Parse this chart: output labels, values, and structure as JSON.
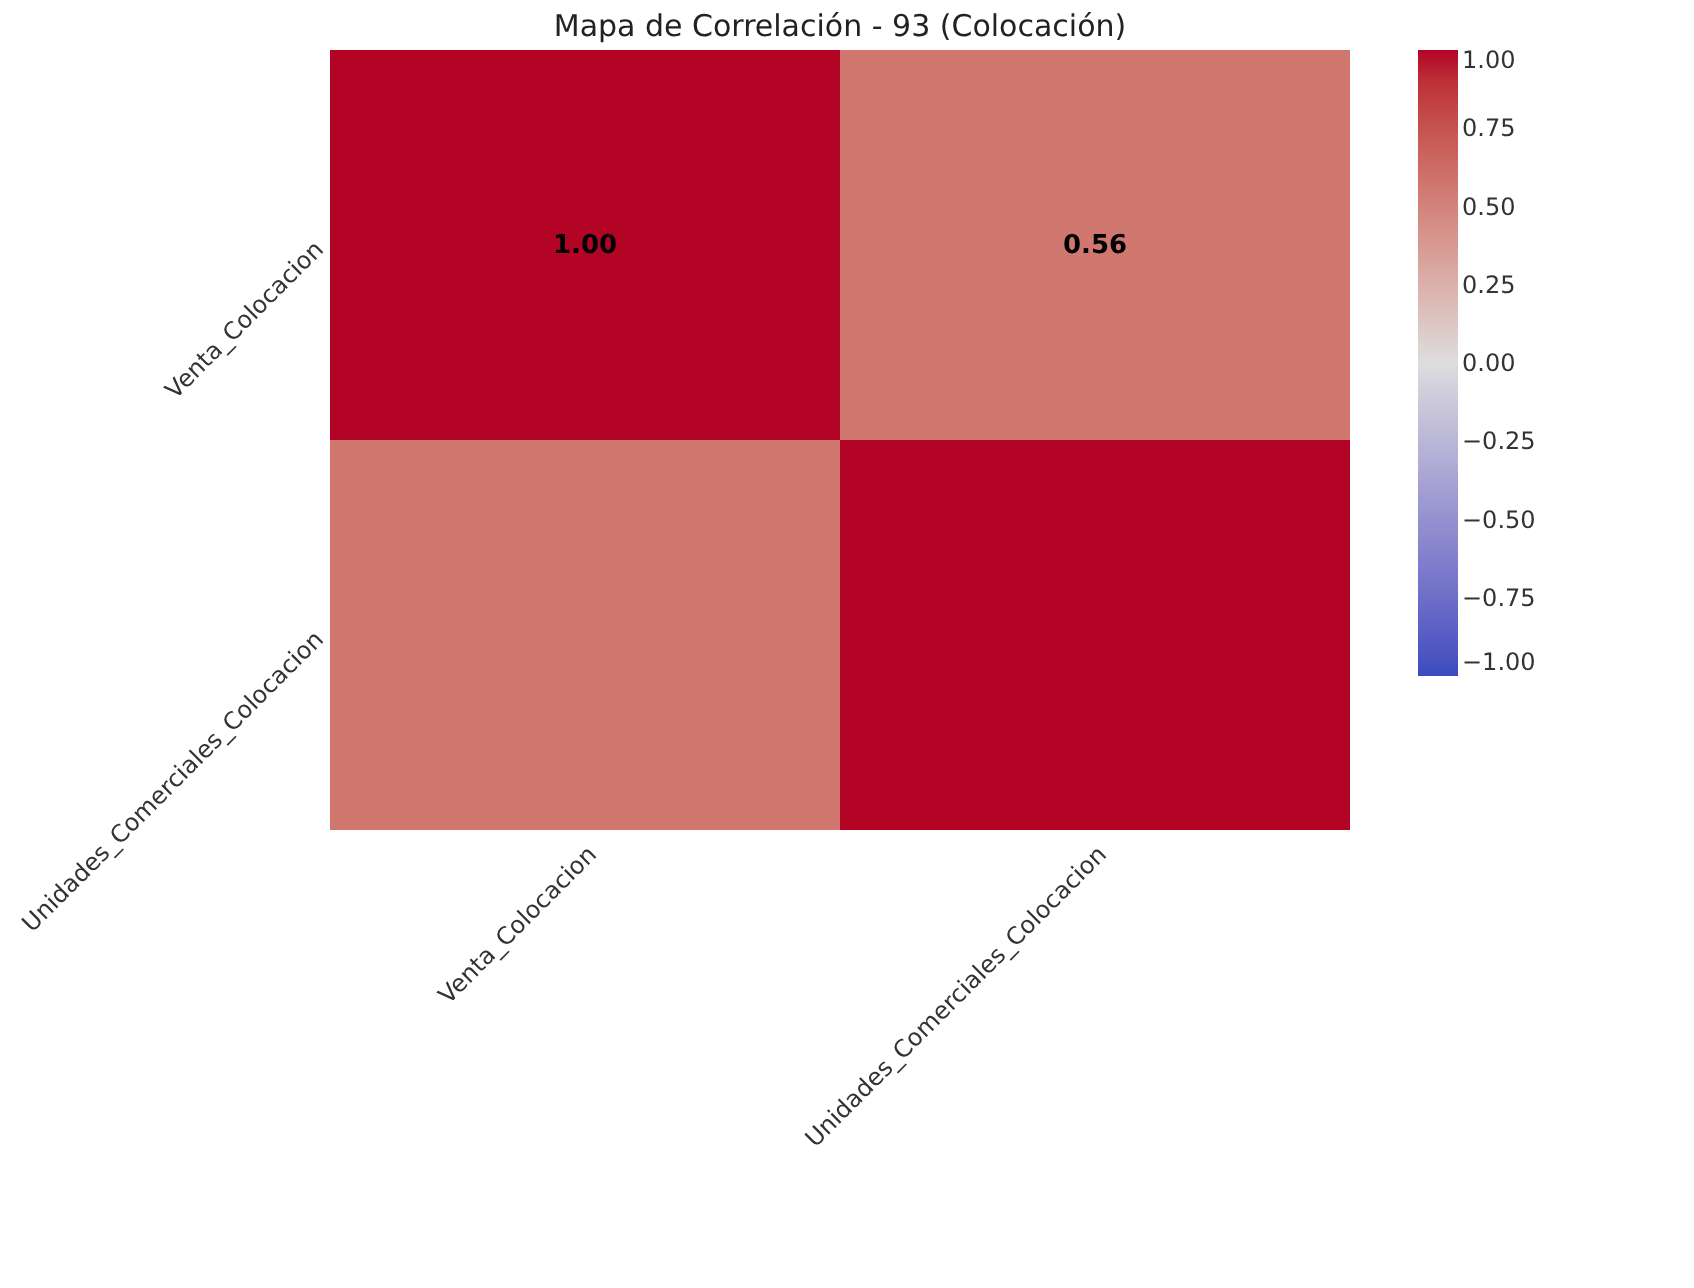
{
  "chart_data": {
    "type": "heatmap",
    "title": "Mapa de Correlación - 93 (Colocación)",
    "categories": [
      "Venta_Colocacion",
      "Unidades_Comerciales_Colocacion"
    ],
    "y_categories": [
      "Venta_Colocacion",
      "Unidades_Comerciales_Colocacion"
    ],
    "cells": [
      [
        1.0,
        0.56
      ],
      [
        0.56,
        1.0
      ]
    ],
    "cell_labels": [
      [
        "1.00",
        "0.56"
      ],
      [
        null,
        null
      ]
    ],
    "clim": [
      -1,
      1
    ],
    "cticks": [
      {
        "value": 1,
        "label": "1.00"
      },
      {
        "value": 0.75,
        "label": "0.75"
      },
      {
        "value": 0.5,
        "label": "0.50"
      },
      {
        "value": 0.25,
        "label": "0.25"
      },
      {
        "value": 0,
        "label": "0.00"
      },
      {
        "value": -0.25,
        "label": "−0.25"
      },
      {
        "value": -0.5,
        "label": "−0.50"
      },
      {
        "value": -0.75,
        "label": "−0.75"
      },
      {
        "value": -1,
        "label": "−1.00"
      }
    ]
  }
}
